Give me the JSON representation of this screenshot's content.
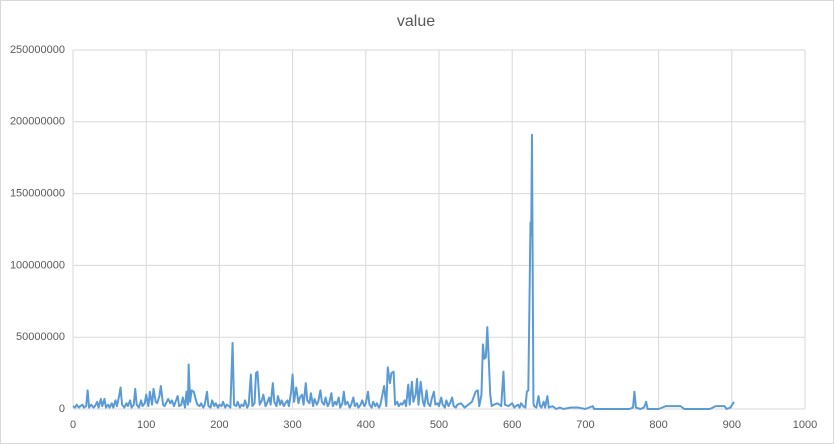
{
  "chart_data": {
    "type": "line",
    "title": "value",
    "x": [
      0,
      3,
      5,
      8,
      10,
      13,
      15,
      18,
      20,
      22,
      25,
      28,
      30,
      33,
      35,
      38,
      40,
      43,
      45,
      48,
      50,
      53,
      55,
      58,
      60,
      63,
      65,
      67,
      70,
      73,
      75,
      78,
      80,
      83,
      85,
      87,
      90,
      93,
      95,
      98,
      100,
      103,
      105,
      108,
      110,
      113,
      115,
      118,
      120,
      123,
      125,
      128,
      130,
      133,
      135,
      138,
      140,
      143,
      145,
      148,
      150,
      153,
      155,
      157,
      158,
      160,
      162,
      165,
      168,
      170,
      173,
      175,
      178,
      180,
      183,
      185,
      188,
      190,
      193,
      195,
      198,
      200,
      203,
      205,
      208,
      210,
      213,
      215,
      218,
      220,
      223,
      225,
      228,
      230,
      233,
      235,
      238,
      240,
      243,
      245,
      248,
      250,
      252,
      255,
      258,
      260,
      263,
      265,
      268,
      270,
      273,
      275,
      278,
      280,
      283,
      285,
      288,
      290,
      293,
      295,
      298,
      300,
      302,
      305,
      308,
      310,
      313,
      315,
      318,
      320,
      323,
      325,
      328,
      330,
      333,
      335,
      338,
      340,
      343,
      345,
      348,
      350,
      353,
      355,
      358,
      360,
      363,
      365,
      368,
      370,
      372,
      375,
      378,
      380,
      383,
      385,
      388,
      390,
      393,
      395,
      398,
      400,
      403,
      405,
      408,
      410,
      413,
      415,
      418,
      420,
      425,
      428,
      430,
      433,
      435,
      438,
      440,
      443,
      445,
      448,
      450,
      453,
      455,
      458,
      460,
      463,
      465,
      468,
      470,
      472,
      475,
      478,
      480,
      483,
      485,
      488,
      490,
      493,
      495,
      498,
      500,
      503,
      505,
      508,
      510,
      513,
      515,
      518,
      520,
      523,
      525,
      530,
      535,
      540,
      545,
      550,
      553,
      555,
      558,
      560,
      562,
      564,
      566,
      568,
      570,
      572,
      575,
      580,
      585,
      588,
      590,
      595,
      600,
      603,
      605,
      608,
      610,
      612,
      615,
      618,
      620,
      622,
      625,
      626,
      627,
      629,
      630,
      633,
      636,
      638,
      640,
      643,
      645,
      648,
      650,
      655,
      660,
      665,
      670,
      680,
      690,
      700,
      710,
      712,
      720,
      740,
      760,
      765,
      767,
      769,
      775,
      780,
      783,
      785,
      800,
      810,
      820,
      830,
      835,
      850,
      870,
      878,
      890,
      893,
      898,
      903
    ],
    "series": [
      {
        "name": "value",
        "color": "#5b9bd5",
        "values": [
          2000000,
          1000000,
          3000000,
          1000000,
          2000000,
          3000000,
          1000000,
          2000000,
          13000000,
          1000000,
          3000000,
          1000000,
          2000000,
          5000000,
          1000000,
          7000000,
          2000000,
          7000000,
          1000000,
          3000000,
          1000000,
          4000000,
          1000000,
          6000000,
          2000000,
          9000000,
          15000000,
          3000000,
          1000000,
          4000000,
          2000000,
          6000000,
          1000000,
          3000000,
          14000000,
          3000000,
          1000000,
          6000000,
          2000000,
          4000000,
          10000000,
          2000000,
          12000000,
          3000000,
          14000000,
          5000000,
          4000000,
          9000000,
          16000000,
          3000000,
          2000000,
          5000000,
          7000000,
          4000000,
          6000000,
          2000000,
          5000000,
          9000000,
          2000000,
          3000000,
          8000000,
          1000000,
          12000000,
          3000000,
          31000000,
          5000000,
          13000000,
          12000000,
          6000000,
          3000000,
          2000000,
          4000000,
          1000000,
          3000000,
          12000000,
          2000000,
          1000000,
          6000000,
          2000000,
          4000000,
          1000000,
          3000000,
          2000000,
          5000000,
          1000000,
          3000000,
          2000000,
          1000000,
          46000000,
          3000000,
          2000000,
          5000000,
          1000000,
          3000000,
          2000000,
          6000000,
          1000000,
          3000000,
          24000000,
          2000000,
          4000000,
          25000000,
          26000000,
          3000000,
          6000000,
          10000000,
          2000000,
          4000000,
          8000000,
          3000000,
          18000000,
          5000000,
          2000000,
          9000000,
          3000000,
          6000000,
          2000000,
          4000000,
          6000000,
          2000000,
          12000000,
          24000000,
          5000000,
          15000000,
          4000000,
          8000000,
          10000000,
          3000000,
          18000000,
          6000000,
          4000000,
          11000000,
          2000000,
          7000000,
          3000000,
          5000000,
          13000000,
          5000000,
          3000000,
          8000000,
          2000000,
          4000000,
          11000000,
          2000000,
          5000000,
          3000000,
          8000000,
          1000000,
          4000000,
          12000000,
          3000000,
          5000000,
          1000000,
          3000000,
          8000000,
          2000000,
          4000000,
          1000000,
          3000000,
          6000000,
          2000000,
          4000000,
          12000000,
          3000000,
          1000000,
          5000000,
          2000000,
          4000000,
          1000000,
          3000000,
          16000000,
          2000000,
          29000000,
          18000000,
          25000000,
          26000000,
          3000000,
          5000000,
          2000000,
          4000000,
          3000000,
          6000000,
          2000000,
          17000000,
          3000000,
          19000000,
          5000000,
          10000000,
          21000000,
          3000000,
          19000000,
          5000000,
          2000000,
          13000000,
          4000000,
          2000000,
          7000000,
          12000000,
          3000000,
          4000000,
          2000000,
          8000000,
          3000000,
          1000000,
          6000000,
          2000000,
          4000000,
          8000000,
          2000000,
          1000000,
          3000000,
          4000000,
          1000000,
          3000000,
          5000000,
          12000000,
          13000000,
          2000000,
          10000000,
          45000000,
          35000000,
          36000000,
          57000000,
          34000000,
          10000000,
          2000000,
          3000000,
          4000000,
          2000000,
          26000000,
          3000000,
          2000000,
          4000000,
          1000000,
          2000000,
          3000000,
          1000000,
          4000000,
          2000000,
          1000000,
          12000000,
          13000000,
          130000000,
          121000000,
          191000000,
          4000000,
          2000000,
          1000000,
          9000000,
          2000000,
          1000000,
          5000000,
          1000000,
          9000000,
          1000000,
          2000000,
          0,
          1000000,
          0,
          1000000,
          1000000,
          0,
          2000000,
          0,
          0,
          0,
          0,
          1000000,
          12000000,
          1000000,
          0,
          1000000,
          5000000,
          0,
          0,
          2000000,
          2000000,
          2000000,
          0,
          0,
          0,
          2000000,
          2000000,
          0,
          1000000,
          5000000
        ]
      }
    ],
    "xlim": [
      0,
      1000
    ],
    "xticks": [
      0,
      100,
      200,
      300,
      400,
      500,
      600,
      700,
      800,
      900,
      1000
    ],
    "ylim": [
      0,
      250000000
    ],
    "yticks": [
      0,
      50000000,
      100000000,
      150000000,
      200000000,
      250000000
    ],
    "grid": true
  }
}
